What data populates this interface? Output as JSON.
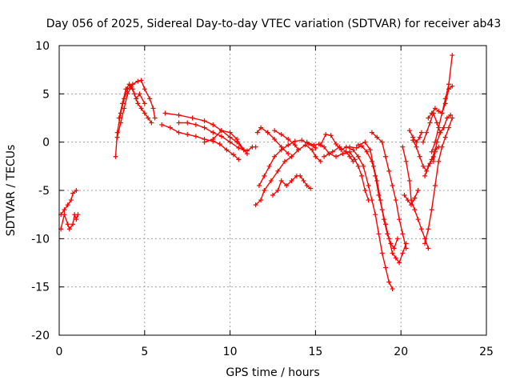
{
  "chart_data": {
    "type": "scatter",
    "title": "Day 056 of 2025, Sidereal Day-to-day VTEC variation (SDTVAR) for receiver ab43",
    "xlabel": "GPS time / hours",
    "ylabel": "SDTVAR / TECUs",
    "xlim": [
      0,
      25
    ],
    "ylim": [
      -20,
      10
    ],
    "xticks": [
      0,
      5,
      10,
      15,
      20,
      25
    ],
    "yticks": [
      -20,
      -15,
      -10,
      -5,
      0,
      5,
      10
    ],
    "grid": true,
    "marker": "plus",
    "color": "#ff0000",
    "series": [
      {
        "points": [
          [
            0.1,
            -9.0
          ],
          [
            0.3,
            -7.5
          ],
          [
            0.5,
            -8.5
          ],
          [
            0.6,
            -9.0
          ],
          [
            0.8,
            -8.5
          ],
          [
            0.9,
            -7.5
          ],
          [
            1.0,
            -8.0
          ],
          [
            1.1,
            -7.5
          ]
        ]
      },
      {
        "points": [
          [
            0.1,
            -7.5
          ],
          [
            0.3,
            -7.0
          ],
          [
            0.5,
            -6.5
          ],
          [
            0.7,
            -6.0
          ],
          [
            0.8,
            -5.3
          ],
          [
            1.0,
            -5.0
          ]
        ]
      },
      {
        "points": [
          [
            3.3,
            -1.5
          ],
          [
            3.4,
            1.0
          ],
          [
            3.6,
            3.0
          ],
          [
            3.8,
            4.5
          ],
          [
            4.0,
            5.5
          ],
          [
            4.2,
            5.8
          ],
          [
            4.4,
            5.0
          ],
          [
            4.6,
            4.0
          ],
          [
            4.8,
            3.5
          ],
          [
            5.0,
            3.0
          ],
          [
            5.2,
            2.5
          ],
          [
            5.4,
            2.0
          ]
        ]
      },
      {
        "points": [
          [
            3.4,
            0.5
          ],
          [
            3.6,
            2.0
          ],
          [
            3.8,
            3.5
          ],
          [
            4.0,
            5.0
          ],
          [
            4.3,
            6.0
          ],
          [
            4.6,
            6.3
          ],
          [
            4.8,
            6.4
          ],
          [
            5.0,
            5.5
          ],
          [
            5.3,
            4.5
          ],
          [
            5.5,
            3.5
          ],
          [
            5.6,
            2.5
          ]
        ]
      },
      {
        "points": [
          [
            3.5,
            2.5
          ],
          [
            3.7,
            4.0
          ],
          [
            3.9,
            5.5
          ],
          [
            4.1,
            6.0
          ],
          [
            4.3,
            5.5
          ],
          [
            4.5,
            4.5
          ],
          [
            4.7,
            5.0
          ],
          [
            5.0,
            4.0
          ]
        ]
      },
      {
        "points": [
          [
            6.2,
            3.0
          ],
          [
            7.0,
            2.8
          ],
          [
            7.8,
            2.5
          ],
          [
            8.5,
            2.2
          ],
          [
            9.0,
            1.8
          ],
          [
            9.5,
            1.2
          ],
          [
            10.0,
            0.5
          ],
          [
            10.4,
            0.0
          ],
          [
            10.8,
            -0.8
          ]
        ]
      },
      {
        "points": [
          [
            6.0,
            1.8
          ],
          [
            6.5,
            1.5
          ],
          [
            7.0,
            1.0
          ],
          [
            7.5,
            0.8
          ],
          [
            8.0,
            0.6
          ],
          [
            8.5,
            0.3
          ],
          [
            9.0,
            0.1
          ],
          [
            9.4,
            -0.2
          ],
          [
            9.8,
            -0.8
          ],
          [
            10.2,
            -1.3
          ],
          [
            10.5,
            -1.8
          ]
        ]
      },
      {
        "points": [
          [
            7.0,
            2.0
          ],
          [
            7.5,
            2.0
          ],
          [
            8.0,
            1.8
          ],
          [
            8.5,
            1.5
          ],
          [
            9.0,
            1.0
          ],
          [
            9.5,
            0.6
          ],
          [
            10.0,
            0.0
          ],
          [
            10.5,
            -0.6
          ],
          [
            11.0,
            -0.9
          ],
          [
            11.3,
            -0.5
          ],
          [
            11.5,
            -0.5
          ]
        ]
      },
      {
        "points": [
          [
            8.5,
            0.0
          ],
          [
            9.0,
            0.3
          ],
          [
            9.5,
            1.2
          ],
          [
            10.0,
            1.0
          ],
          [
            10.4,
            0.3
          ],
          [
            10.8,
            -0.8
          ],
          [
            11.0,
            -1.2
          ]
        ]
      },
      {
        "points": [
          [
            11.5,
            -6.5
          ],
          [
            11.8,
            -6.0
          ],
          [
            12.0,
            -5.0
          ],
          [
            12.4,
            -4.0
          ],
          [
            12.8,
            -3.0
          ],
          [
            13.2,
            -2.0
          ],
          [
            13.6,
            -1.5
          ],
          [
            14.0,
            -0.8
          ],
          [
            14.4,
            -0.3
          ],
          [
            14.8,
            -0.8
          ],
          [
            15.0,
            -1.5
          ],
          [
            15.3,
            -2.0
          ]
        ]
      },
      {
        "points": [
          [
            11.7,
            -4.5
          ],
          [
            12.0,
            -3.5
          ],
          [
            12.3,
            -2.5
          ],
          [
            12.6,
            -1.5
          ],
          [
            13.0,
            -0.8
          ],
          [
            13.4,
            -0.3
          ],
          [
            13.8,
            0.1
          ],
          [
            14.2,
            0.2
          ],
          [
            14.6,
            -0.2
          ],
          [
            15.0,
            -0.6
          ]
        ]
      },
      {
        "points": [
          [
            12.5,
            -5.5
          ],
          [
            12.8,
            -5.0
          ],
          [
            13.0,
            -4.0
          ],
          [
            13.3,
            -4.5
          ],
          [
            13.6,
            -4.0
          ],
          [
            13.9,
            -3.5
          ],
          [
            14.1,
            -3.5
          ],
          [
            14.3,
            -4.0
          ],
          [
            14.5,
            -4.5
          ],
          [
            14.7,
            -4.8
          ]
        ]
      },
      {
        "points": [
          [
            11.6,
            1.0
          ],
          [
            11.8,
            1.5
          ],
          [
            12.2,
            1.0
          ],
          [
            12.6,
            0.3
          ],
          [
            13.0,
            -0.5
          ],
          [
            13.4,
            -1.2
          ]
        ]
      },
      {
        "points": [
          [
            12.6,
            1.2
          ],
          [
            13.0,
            0.8
          ],
          [
            13.4,
            0.3
          ],
          [
            13.8,
            -0.3
          ],
          [
            14.0,
            -0.8
          ]
        ]
      },
      {
        "points": [
          [
            14.5,
            0.0
          ],
          [
            14.9,
            -0.3
          ],
          [
            15.2,
            -0.2
          ],
          [
            15.5,
            -0.5
          ],
          [
            15.8,
            -1.2
          ],
          [
            16.2,
            -1.5
          ],
          [
            16.6,
            -1.2
          ],
          [
            17.0,
            -1.0
          ],
          [
            17.3,
            -1.8
          ],
          [
            17.5,
            -2.5
          ],
          [
            17.7,
            -3.5
          ],
          [
            17.9,
            -5.0
          ],
          [
            18.1,
            -6.0
          ]
        ]
      },
      {
        "points": [
          [
            15.5,
            -1.5
          ],
          [
            16.0,
            -1.0
          ],
          [
            16.4,
            -0.5
          ],
          [
            16.8,
            -1.0
          ],
          [
            17.0,
            -1.5
          ],
          [
            17.2,
            -2.0
          ]
        ]
      },
      {
        "points": [
          [
            15.3,
            -0.3
          ],
          [
            15.6,
            0.8
          ],
          [
            15.9,
            0.7
          ],
          [
            16.2,
            -0.2
          ],
          [
            16.5,
            -0.8
          ],
          [
            16.8,
            -0.5
          ],
          [
            17.2,
            -0.8
          ],
          [
            17.5,
            -1.5
          ],
          [
            17.8,
            -2.5
          ],
          [
            18.1,
            -4.5
          ],
          [
            18.3,
            -6.0
          ],
          [
            18.5,
            -7.5
          ],
          [
            18.7,
            -9.5
          ],
          [
            18.9,
            -11.5
          ],
          [
            19.1,
            -13.0
          ],
          [
            19.3,
            -14.5
          ],
          [
            19.5,
            -15.2
          ]
        ]
      },
      {
        "points": [
          [
            17.0,
            -0.5
          ],
          [
            17.4,
            -0.6
          ],
          [
            17.7,
            -0.4
          ],
          [
            18.0,
            -1.0
          ],
          [
            18.3,
            -2.0
          ],
          [
            18.5,
            -3.5
          ],
          [
            18.7,
            -5.5
          ],
          [
            18.9,
            -7.0
          ],
          [
            19.1,
            -8.5
          ],
          [
            19.3,
            -10.0
          ],
          [
            19.5,
            -11.5
          ],
          [
            19.7,
            -12.0
          ],
          [
            19.9,
            -12.5
          ],
          [
            20.1,
            -11.5
          ],
          [
            20.3,
            -10.5
          ]
        ]
      },
      {
        "points": [
          [
            17.5,
            -0.3
          ],
          [
            17.9,
            0.0
          ],
          [
            18.2,
            -0.8
          ],
          [
            18.4,
            -2.5
          ],
          [
            18.6,
            -4.0
          ],
          [
            18.8,
            -6.0
          ],
          [
            19.0,
            -8.0
          ],
          [
            19.2,
            -9.5
          ],
          [
            19.4,
            -10.5
          ],
          [
            19.6,
            -11.0
          ],
          [
            19.8,
            -10.0
          ]
        ]
      },
      {
        "points": [
          [
            18.3,
            1.0
          ],
          [
            18.6,
            0.5
          ],
          [
            18.9,
            0.0
          ],
          [
            19.1,
            -1.5
          ],
          [
            19.3,
            -3.0
          ],
          [
            19.5,
            -4.5
          ],
          [
            19.7,
            -6.0
          ],
          [
            19.9,
            -8.0
          ],
          [
            20.1,
            -9.5
          ],
          [
            20.3,
            -11.0
          ]
        ]
      },
      {
        "points": [
          [
            20.1,
            -0.5
          ],
          [
            20.3,
            -2.0
          ],
          [
            20.5,
            -4.0
          ],
          [
            20.6,
            -6.0
          ],
          [
            20.8,
            -7.0
          ],
          [
            21.0,
            -8.0
          ],
          [
            21.2,
            -9.0
          ],
          [
            21.4,
            -10.0
          ],
          [
            21.6,
            -11.0
          ]
        ]
      },
      {
        "points": [
          [
            20.2,
            -5.5
          ],
          [
            20.4,
            -6.0
          ],
          [
            20.6,
            -6.5
          ],
          [
            20.8,
            -5.8
          ],
          [
            21.0,
            -5.0
          ]
        ]
      },
      {
        "points": [
          [
            20.7,
            0.2
          ],
          [
            20.9,
            -0.5
          ],
          [
            21.1,
            -1.5
          ],
          [
            21.3,
            -2.5
          ],
          [
            21.5,
            -3.0
          ],
          [
            21.7,
            -2.2
          ],
          [
            21.9,
            -1.5
          ]
        ]
      },
      {
        "points": [
          [
            20.5,
            1.2
          ],
          [
            20.7,
            0.5
          ],
          [
            20.9,
            0.0
          ],
          [
            21.1,
            0.5
          ],
          [
            21.2,
            1.0
          ]
        ]
      },
      {
        "points": [
          [
            21.4,
            -10.5
          ],
          [
            21.6,
            -9.0
          ],
          [
            21.8,
            -7.0
          ],
          [
            22.0,
            -4.5
          ],
          [
            22.2,
            -2.0
          ],
          [
            22.4,
            -0.5
          ],
          [
            22.6,
            0.5
          ],
          [
            22.8,
            1.5
          ],
          [
            23.0,
            2.5
          ]
        ]
      },
      {
        "points": [
          [
            21.3,
            0.0
          ],
          [
            21.5,
            1.0
          ],
          [
            21.7,
            2.0
          ],
          [
            21.9,
            3.0
          ],
          [
            22.1,
            2.0
          ],
          [
            22.3,
            1.0
          ],
          [
            22.5,
            1.5
          ],
          [
            22.7,
            2.5
          ],
          [
            22.9,
            2.8
          ]
        ]
      },
      {
        "points": [
          [
            21.8,
            -1.0
          ],
          [
            22.0,
            0.0
          ],
          [
            22.2,
            1.5
          ],
          [
            22.4,
            3.0
          ],
          [
            22.6,
            4.5
          ],
          [
            22.8,
            6.0
          ],
          [
            23.0,
            9.0
          ]
        ]
      },
      {
        "points": [
          [
            21.6,
            2.5
          ],
          [
            21.8,
            3.0
          ],
          [
            22.0,
            3.5
          ],
          [
            22.2,
            3.2
          ],
          [
            22.4,
            3.0
          ],
          [
            22.6,
            4.0
          ],
          [
            22.8,
            5.5
          ],
          [
            23.0,
            5.8
          ]
        ]
      },
      {
        "points": [
          [
            21.9,
            -2.0
          ],
          [
            22.0,
            -1.0
          ],
          [
            22.1,
            0.0
          ],
          [
            22.3,
            1.0
          ],
          [
            22.5,
            1.5
          ]
        ]
      },
      {
        "points": [
          [
            21.4,
            -3.5
          ],
          [
            21.6,
            -2.5
          ],
          [
            21.8,
            -1.8
          ],
          [
            22.0,
            -0.8
          ],
          [
            22.2,
            -0.5
          ]
        ]
      }
    ]
  }
}
